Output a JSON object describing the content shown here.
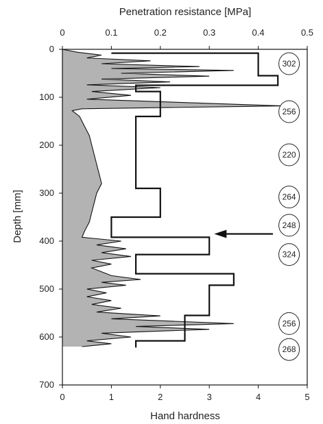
{
  "chart_data": {
    "type": "line",
    "top_axis": {
      "label": "Penetration resistance [MPa]",
      "ticks": [
        "0",
        "0.1",
        "0.2",
        "0.3",
        "0.4",
        "0.5"
      ],
      "range": [
        0,
        0.5
      ]
    },
    "bottom_axis": {
      "label": "Hand hardness",
      "ticks": [
        "0",
        "1",
        "2",
        "3",
        "4",
        "5"
      ],
      "range": [
        0,
        5
      ]
    },
    "left_axis": {
      "label": "Depth [mm]",
      "ticks": [
        "0",
        "100",
        "200",
        "300",
        "400",
        "500",
        "600",
        "700"
      ],
      "range": [
        0,
        700
      ],
      "inverted": true
    },
    "series": [
      {
        "role": "hand-hardness-profile",
        "axis": "bottom",
        "color": "#111111",
        "points": [
          [
            1.0,
            8
          ],
          [
            4.0,
            8
          ],
          [
            4.0,
            55
          ],
          [
            4.4,
            55
          ],
          [
            4.4,
            75
          ],
          [
            1.5,
            75
          ],
          [
            1.5,
            88
          ],
          [
            2.0,
            88
          ],
          [
            2.0,
            140
          ],
          [
            1.5,
            140
          ],
          [
            1.5,
            290
          ],
          [
            2.0,
            290
          ],
          [
            2.0,
            350
          ],
          [
            1.0,
            350
          ],
          [
            1.0,
            392
          ],
          [
            3.0,
            392
          ],
          [
            3.0,
            428
          ],
          [
            1.5,
            428
          ],
          [
            1.5,
            468
          ],
          [
            3.5,
            468
          ],
          [
            3.5,
            492
          ],
          [
            3.0,
            492
          ],
          [
            3.0,
            555
          ],
          [
            2.5,
            555
          ],
          [
            2.5,
            608
          ],
          [
            1.5,
            608
          ],
          [
            1.5,
            622
          ]
        ]
      },
      {
        "role": "penetration-resistance-profile",
        "axis": "top",
        "color": "#111111",
        "fill": "#9a9a9a",
        "points": [
          [
            0.0,
            0
          ],
          [
            0.03,
            6
          ],
          [
            0.08,
            12
          ],
          [
            0.05,
            18
          ],
          [
            0.18,
            24
          ],
          [
            0.08,
            30
          ],
          [
            0.28,
            36
          ],
          [
            0.1,
            40
          ],
          [
            0.35,
            44
          ],
          [
            0.12,
            50
          ],
          [
            0.3,
            56
          ],
          [
            0.08,
            62
          ],
          [
            0.22,
            68
          ],
          [
            0.05,
            74
          ],
          [
            0.2,
            80
          ],
          [
            0.06,
            88
          ],
          [
            0.14,
            96
          ],
          [
            0.05,
            104
          ],
          [
            0.45,
            118
          ],
          [
            0.04,
            124
          ],
          [
            0.02,
            128
          ],
          [
            0.035,
            140
          ],
          [
            0.045,
            160
          ],
          [
            0.055,
            180
          ],
          [
            0.06,
            200
          ],
          [
            0.065,
            220
          ],
          [
            0.07,
            240
          ],
          [
            0.075,
            260
          ],
          [
            0.08,
            280
          ],
          [
            0.07,
            300
          ],
          [
            0.065,
            320
          ],
          [
            0.06,
            340
          ],
          [
            0.055,
            360
          ],
          [
            0.045,
            380
          ],
          [
            0.04,
            392
          ],
          [
            0.12,
            400
          ],
          [
            0.07,
            408
          ],
          [
            0.13,
            416
          ],
          [
            0.08,
            424
          ],
          [
            0.14,
            432
          ],
          [
            0.06,
            440
          ],
          [
            0.1,
            448
          ],
          [
            0.06,
            456
          ],
          [
            0.08,
            464
          ],
          [
            0.1,
            472
          ],
          [
            0.16,
            480
          ],
          [
            0.08,
            486
          ],
          [
            0.13,
            492
          ],
          [
            0.05,
            500
          ],
          [
            0.09,
            508
          ],
          [
            0.05,
            516
          ],
          [
            0.1,
            524
          ],
          [
            0.06,
            532
          ],
          [
            0.12,
            540
          ],
          [
            0.07,
            548
          ],
          [
            0.2,
            556
          ],
          [
            0.1,
            562
          ],
          [
            0.35,
            572
          ],
          [
            0.15,
            578
          ],
          [
            0.3,
            584
          ],
          [
            0.08,
            592
          ],
          [
            0.14,
            600
          ],
          [
            0.05,
            608
          ],
          [
            0.1,
            614
          ],
          [
            0.04,
            620
          ]
        ]
      }
    ],
    "density_labels": [
      {
        "value": "302",
        "depth": 30
      },
      {
        "value": "256",
        "depth": 130
      },
      {
        "value": "220",
        "depth": 220
      },
      {
        "value": "264",
        "depth": 308
      },
      {
        "value": "248",
        "depth": 367
      },
      {
        "value": "324",
        "depth": 428
      },
      {
        "value": "256",
        "depth": 572
      },
      {
        "value": "268",
        "depth": 626
      }
    ],
    "arrow": {
      "depth": 385,
      "from_hardness": 4.3,
      "to_hardness": 3.1
    }
  }
}
